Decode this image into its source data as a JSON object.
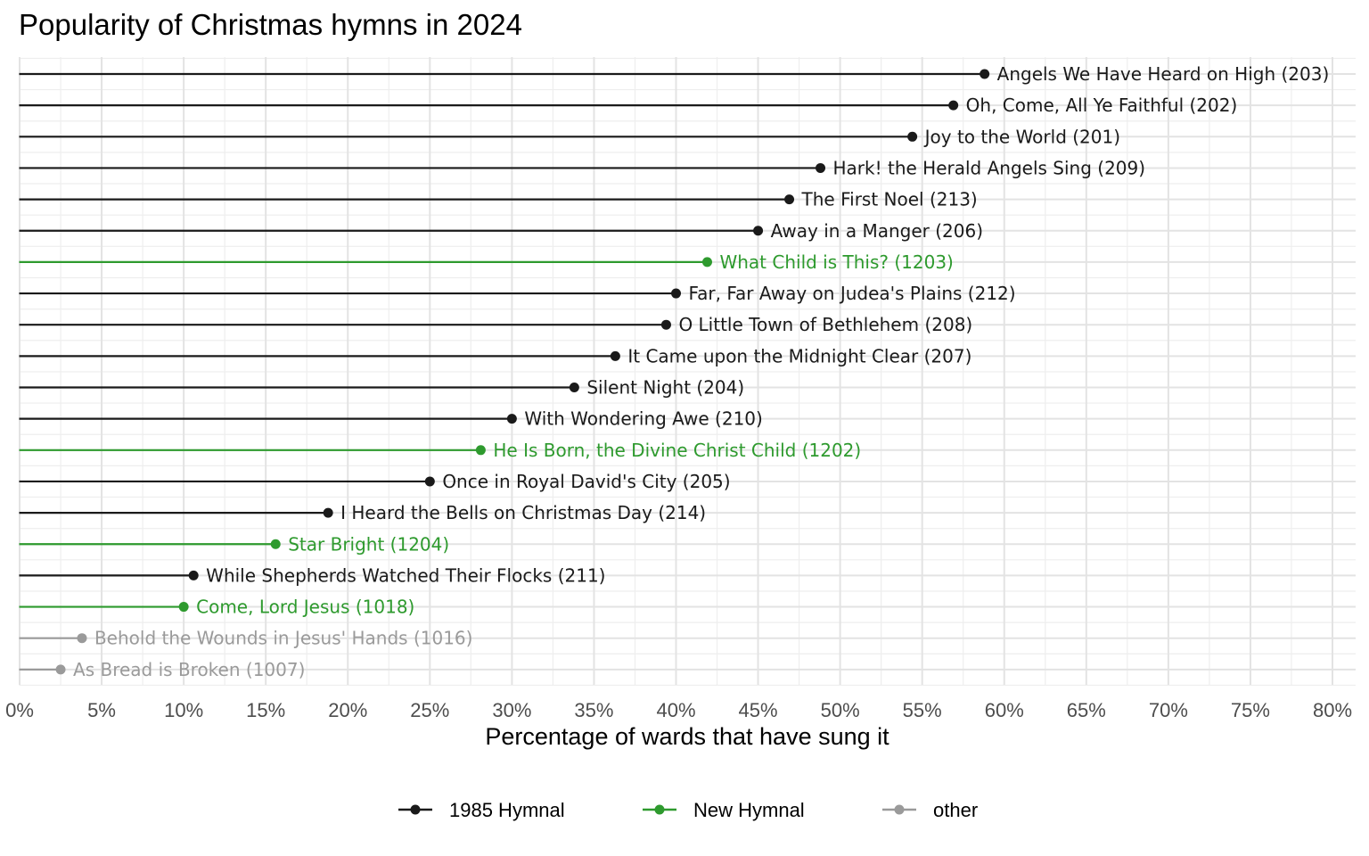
{
  "chart_data": {
    "type": "lollipop",
    "title": "Popularity of Christmas hymns in 2024",
    "xlabel": "Percentage of wards that have sung it",
    "ylabel": "",
    "xlim": [
      0,
      80
    ],
    "x_tick_values": [
      0,
      5,
      10,
      15,
      20,
      25,
      30,
      35,
      40,
      45,
      50,
      55,
      60,
      65,
      70,
      75,
      80
    ],
    "x_tick_labels": [
      "0%",
      "5%",
      "10%",
      "15%",
      "20%",
      "25%",
      "30%",
      "35%",
      "40%",
      "45%",
      "50%",
      "55%",
      "60%",
      "65%",
      "70%",
      "75%",
      "80%"
    ],
    "grid": true,
    "legend_position": "bottom",
    "colors": {
      "1985 Hymnal": "#1a1a1a",
      "New Hymnal": "#2e9a2e",
      "other": "#9a9a9a"
    },
    "legend": [
      "1985 Hymnal",
      "New Hymnal",
      "other"
    ],
    "points": [
      {
        "label": "Angels We Have Heard on High (203)",
        "value": 58.8,
        "group": "1985 Hymnal"
      },
      {
        "label": "Oh, Come, All Ye Faithful (202)",
        "value": 56.9,
        "group": "1985 Hymnal"
      },
      {
        "label": "Joy to the World (201)",
        "value": 54.4,
        "group": "1985 Hymnal"
      },
      {
        "label": "Hark! the Herald Angels Sing (209)",
        "value": 48.8,
        "group": "1985 Hymnal"
      },
      {
        "label": "The First Noel (213)",
        "value": 46.9,
        "group": "1985 Hymnal"
      },
      {
        "label": "Away in a Manger (206)",
        "value": 45.0,
        "group": "1985 Hymnal"
      },
      {
        "label": "What Child is This? (1203)",
        "value": 41.9,
        "group": "New Hymnal"
      },
      {
        "label": "Far, Far Away on Judea's Plains (212)",
        "value": 40.0,
        "group": "1985 Hymnal"
      },
      {
        "label": "O Little Town of Bethlehem (208)",
        "value": 39.4,
        "group": "1985 Hymnal"
      },
      {
        "label": "It Came upon the Midnight Clear (207)",
        "value": 36.3,
        "group": "1985 Hymnal"
      },
      {
        "label": "Silent Night (204)",
        "value": 33.8,
        "group": "1985 Hymnal"
      },
      {
        "label": "With Wondering Awe (210)",
        "value": 30.0,
        "group": "1985 Hymnal"
      },
      {
        "label": "He Is Born, the Divine Christ Child (1202)",
        "value": 28.1,
        "group": "New Hymnal"
      },
      {
        "label": "Once in Royal David's City (205)",
        "value": 25.0,
        "group": "1985 Hymnal"
      },
      {
        "label": "I Heard the Bells on Christmas Day (214)",
        "value": 18.8,
        "group": "1985 Hymnal"
      },
      {
        "label": "Star Bright (1204)",
        "value": 15.6,
        "group": "New Hymnal"
      },
      {
        "label": "While Shepherds Watched Their Flocks (211)",
        "value": 10.6,
        "group": "1985 Hymnal"
      },
      {
        "label": "Come, Lord Jesus (1018)",
        "value": 10.0,
        "group": "New Hymnal"
      },
      {
        "label": "Behold the Wounds in Jesus' Hands (1016)",
        "value": 3.8,
        "group": "other"
      },
      {
        "label": "As Bread is Broken (1007)",
        "value": 2.5,
        "group": "other"
      }
    ]
  }
}
